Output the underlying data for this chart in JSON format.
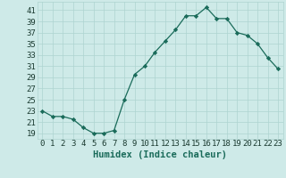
{
  "x": [
    0,
    1,
    2,
    3,
    4,
    5,
    6,
    7,
    8,
    9,
    10,
    11,
    12,
    13,
    14,
    15,
    16,
    17,
    18,
    19,
    20,
    21,
    22,
    23
  ],
  "y": [
    23,
    22,
    22,
    21.5,
    20,
    19,
    19,
    19.5,
    25,
    29.5,
    31,
    33.5,
    35.5,
    37.5,
    40,
    40,
    41.5,
    39.5,
    39.5,
    37,
    36.5,
    35,
    32.5,
    30.5
  ],
  "xlabel": "Humidex (Indice chaleur)",
  "ylabel": "",
  "xlim": [
    -0.5,
    23.5
  ],
  "ylim": [
    18,
    42.5
  ],
  "yticks": [
    19,
    21,
    23,
    25,
    27,
    29,
    31,
    33,
    35,
    37,
    39,
    41
  ],
  "xticks": [
    0,
    1,
    2,
    3,
    4,
    5,
    6,
    7,
    8,
    9,
    10,
    11,
    12,
    13,
    14,
    15,
    16,
    17,
    18,
    19,
    20,
    21,
    22,
    23
  ],
  "line_color": "#1a6b5a",
  "bg_color": "#ceeae8",
  "grid_color": "#aed4d0",
  "xlabel_fontsize": 7.5,
  "tick_fontsize": 6.5
}
